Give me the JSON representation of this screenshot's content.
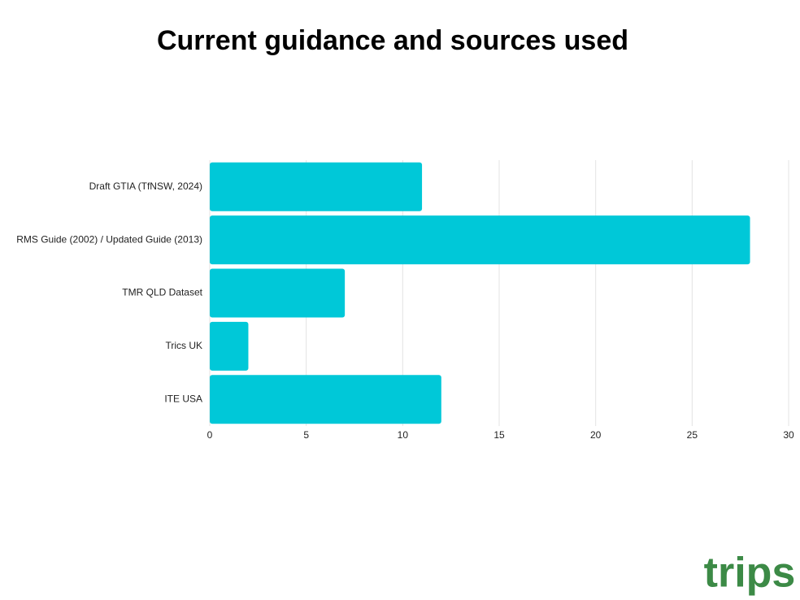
{
  "chart_data": {
    "type": "bar",
    "orientation": "horizontal",
    "title": "Current guidance and sources used",
    "categories": [
      "Draft GTIA (TfNSW, 2024)",
      "RMS Guide (2002) / Updated Guide (2013)",
      "TMR QLD Dataset",
      "Trics UK",
      "ITE USA"
    ],
    "values": [
      11,
      28,
      7,
      2,
      12
    ],
    "color": "#00c8d8",
    "xlim": [
      0,
      30
    ],
    "xticks": [
      0,
      5,
      10,
      15,
      20,
      25,
      30
    ],
    "grid": true
  },
  "logo": "trips"
}
